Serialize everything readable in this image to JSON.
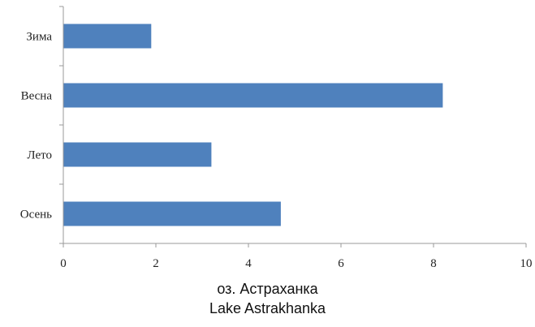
{
  "chart_data": {
    "type": "bar",
    "orientation": "horizontal",
    "categories": [
      "Зима",
      "Весна",
      "Лето",
      "Осень"
    ],
    "values": [
      1.9,
      8.2,
      3.2,
      4.7
    ],
    "xlim": [
      0,
      10
    ],
    "xticks": [
      0,
      2,
      4,
      6,
      8,
      10
    ],
    "grid": false,
    "bar_color": "#4f81bd",
    "axis_color": "#999999"
  },
  "caption": {
    "line1": "оз. Астраханка",
    "line2": "Lake Astrakhanka"
  }
}
